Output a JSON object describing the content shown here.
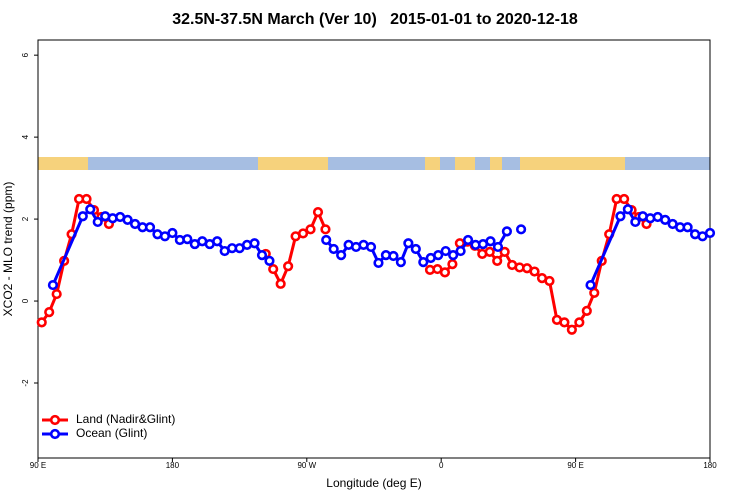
{
  "chart_data": {
    "type": "line",
    "title": "32.5N-37.5N March (Ver 10)   2015-01-01 to 2020-12-18",
    "x_label": "Longitude (deg E)",
    "y_label": "XCO2 - MLO trend (ppm)",
    "xlim": [
      90,
      540
    ],
    "xticks": [
      {
        "value": 90,
        "label": "90 E"
      },
      180,
      {
        "value": 270,
        "label": "90 W"
      },
      {
        "value": 360,
        "label": "0"
      },
      {
        "value": 450,
        "label": "90 E"
      },
      {
        "value": 540,
        "label": "180"
      }
    ],
    "ylim": [
      -3.83,
      6.37
    ],
    "yticks": [
      -2,
      0,
      2,
      4,
      6
    ],
    "legend": "bottom-left",
    "series": [
      {
        "name": "Land (Nadir&Glint)",
        "color": "#ff0000",
        "x": [
          92.5,
          97.5,
          102.5,
          107.5,
          112.5,
          117.5,
          122.5,
          127.5,
          132.5,
          137.5,
          190,
          242.5,
          247.5,
          252.5,
          257.5,
          262.5,
          267.5,
          272.5,
          277.5,
          282.5,
          320,
          352.5,
          357.5,
          362.5,
          367.5,
          372.5,
          377.5,
          382.5,
          387.5,
          392.5,
          397.5,
          402.5,
          407.5,
          412.5,
          417.5,
          422.5,
          427.5,
          432.5,
          437.5,
          442.5,
          447.5,
          452.5,
          457.5,
          462.5,
          467.5,
          472.5,
          477.5,
          482.5,
          487.5,
          492.5,
          497.5
        ],
        "values": [
          -0.52,
          -0.27,
          0.17,
          0.98,
          1.63,
          2.49,
          2.49,
          2.22,
          2.05,
          1.88,
          null,
          1.15,
          0.78,
          0.42,
          0.85,
          1.58,
          1.65,
          1.75,
          2.17,
          1.75,
          null,
          0.76,
          0.78,
          0.7,
          0.9,
          1.41,
          1.45,
          1.35,
          1.15,
          1.2,
          0.98,
          1.2,
          0.88,
          0.82,
          0.8,
          0.72,
          0.56,
          0.49,
          -0.46,
          -0.52,
          -0.7,
          -0.52,
          -0.24,
          0.2,
          0.98,
          1.63,
          2.49,
          2.49,
          2.22,
          2.05,
          1.88
        ]
      },
      {
        "name": "Ocean (Glint)",
        "color": "#0000ff",
        "x": [
          100,
          120,
          125,
          130,
          135,
          140,
          145,
          150,
          155,
          160,
          165,
          170,
          175,
          180,
          185,
          190,
          195,
          200,
          205,
          210,
          215,
          220,
          225,
          230,
          235,
          240,
          245,
          264,
          283,
          288,
          293,
          298,
          303,
          308,
          313,
          318,
          323,
          328,
          333,
          338,
          343,
          348,
          353,
          358,
          363,
          368,
          373,
          378,
          383,
          388,
          393,
          398,
          404,
          409,
          413.5,
          437,
          460,
          480,
          485,
          490,
          495,
          500,
          505,
          510,
          515,
          520,
          525,
          530,
          535,
          540
        ],
        "values": [
          0.39,
          2.07,
          2.24,
          1.93,
          2.07,
          2.02,
          2.05,
          1.98,
          1.88,
          1.8,
          1.8,
          1.63,
          1.58,
          1.66,
          1.49,
          1.51,
          1.39,
          1.46,
          1.39,
          1.46,
          1.22,
          1.29,
          1.29,
          1.37,
          1.41,
          1.12,
          0.98,
          null,
          1.49,
          1.27,
          1.12,
          1.37,
          1.32,
          1.37,
          1.32,
          0.93,
          1.12,
          1.1,
          0.95,
          1.41,
          1.27,
          0.95,
          1.05,
          1.12,
          1.22,
          1.12,
          1.22,
          1.49,
          1.37,
          1.39,
          1.46,
          1.32,
          1.7,
          null,
          1.75,
          null,
          0.39,
          2.07,
          2.24,
          1.93,
          2.07,
          2.02,
          2.05,
          1.98,
          1.88,
          1.8,
          1.8,
          1.63,
          1.58,
          1.66
        ]
      }
    ]
  }
}
